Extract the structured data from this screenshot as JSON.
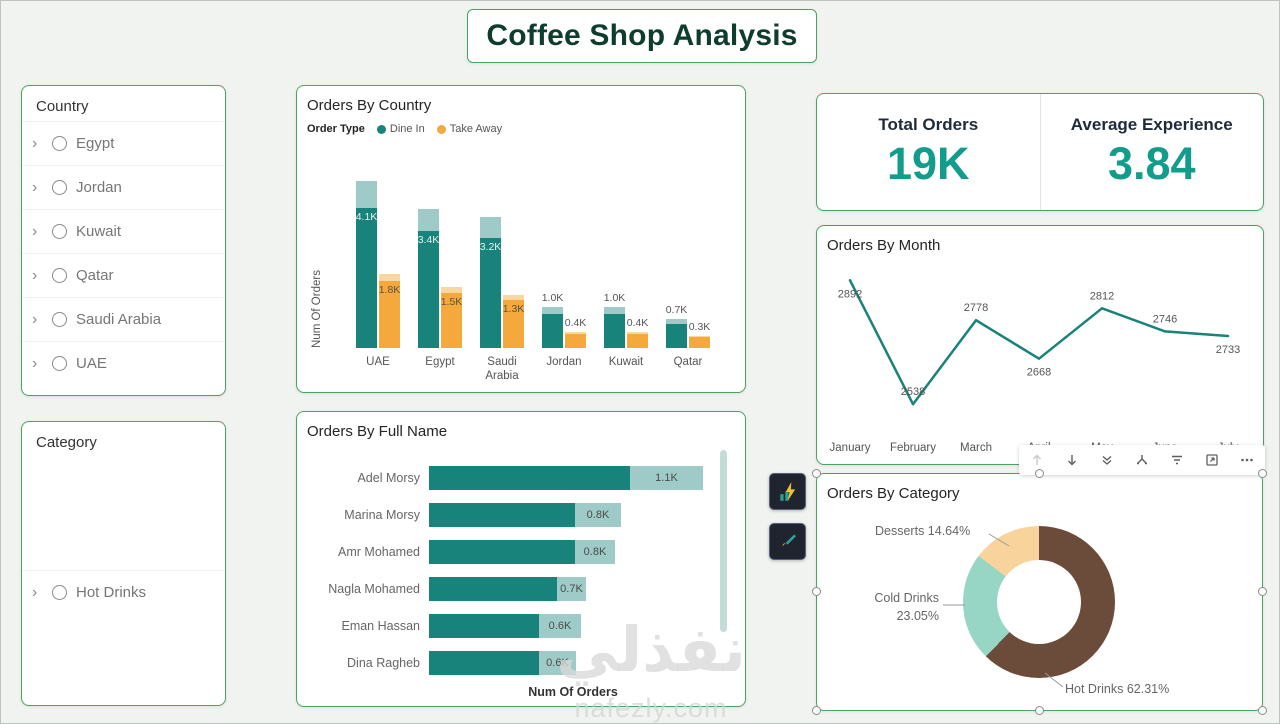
{
  "page": {
    "title": "Coffee Shop Analysis"
  },
  "colors": {
    "accent_teal": "#129c8b",
    "teal_dark": "#17837a",
    "teal_light": "#9ecbc7",
    "orange": "#f5a83c",
    "orange_light": "#f8d8a0",
    "card_border": "#4aa35e",
    "title_color": "#0e3c2e"
  },
  "slicers": {
    "country": {
      "title": "Country",
      "items": [
        "Egypt",
        "Jordan",
        "Kuwait",
        "Qatar",
        "Saudi Arabia",
        "UAE"
      ]
    },
    "category": {
      "title": "Category",
      "items": [
        "Hot Drinks"
      ]
    }
  },
  "kpis": {
    "total_orders": {
      "label": "Total Orders",
      "value": "19K"
    },
    "average_experience": {
      "label": "Average Experience",
      "value": "3.84"
    }
  },
  "visual_toolbar": {
    "icons": [
      "drill-up",
      "drill-down",
      "go-to-next-level",
      "expand-all-down",
      "filters",
      "focus-mode",
      "more-options"
    ]
  },
  "nav_buttons": [
    "bookmark-chart-button",
    "bookmark-brush-button"
  ],
  "watermark": {
    "line1": "نفذلي",
    "line2": "nafezly.com"
  },
  "chart_data": [
    {
      "id": "orders_by_country",
      "type": "bar",
      "title": "Orders By Country",
      "legend_title": "Order Type",
      "legend_position": "top-left",
      "categories": [
        "UAE",
        "Egypt",
        "Saudi Arabia",
        "Jordan",
        "Kuwait",
        "Qatar"
      ],
      "series": [
        {
          "name": "Dine In",
          "color": "#17837a",
          "color_light": "#9ecbc7",
          "values": [
            4100,
            3400,
            3200,
            1000,
            1000,
            700
          ],
          "labels": [
            "4.1K",
            "3.4K",
            "3.2K",
            "1.0K",
            "1.0K",
            "0.7K"
          ],
          "cap_fraction": 0.16,
          "inside_label_color": "#e9f0ef"
        },
        {
          "name": "Take Away",
          "color": "#f5a83c",
          "color_light": "#f8d8a0",
          "values": [
            1800,
            1500,
            1300,
            400,
            400,
            300
          ],
          "labels": [
            "1.8K",
            "1.5K",
            "1.3K",
            "0.4K",
            "0.4K",
            "0.3K"
          ],
          "cap_fraction": 0.1,
          "inside_label_color": "#5a5248"
        }
      ],
      "ylabel": "Num Of Orders",
      "ymax": 4800,
      "grid": false
    },
    {
      "id": "orders_by_full_name",
      "type": "bar-horizontal",
      "title": "Orders By Full Name",
      "categories": [
        "Adel Morsy",
        "Marina Morsy",
        "Amr Mohamed",
        "Nagla Mohamed",
        "Eman Hassan",
        "Dina Ragheb"
      ],
      "values": [
        1100,
        800,
        800,
        700,
        600,
        600
      ],
      "totals": [
        1500,
        1050,
        1020,
        860,
        830,
        800
      ],
      "labels": [
        "1.1K",
        "0.8K",
        "0.8K",
        "0.7K",
        "0.6K",
        "0.6K"
      ],
      "xlabel": "Num Of Orders",
      "grid": false
    },
    {
      "id": "orders_by_month",
      "type": "line",
      "title": "Orders By Month",
      "categories": [
        "January",
        "February",
        "March",
        "April",
        "May",
        "June",
        "July"
      ],
      "values": [
        2892,
        2538,
        2778,
        2668,
        2812,
        2746,
        2733
      ],
      "label_positions": [
        "below",
        "above",
        "above",
        "below",
        "above",
        "above",
        "below"
      ],
      "color": "#17837a",
      "ymin": 2450,
      "ymax": 2950,
      "grid": false
    },
    {
      "id": "orders_by_category",
      "type": "donut",
      "title": "Orders By Category",
      "slices": [
        {
          "name": "Hot Drinks",
          "pct": 62.31,
          "label": "Hot Drinks 62.31%",
          "color": "#6b4b3a"
        },
        {
          "name": "Cold Drinks",
          "pct": 23.05,
          "label": "Cold Drinks 23.05%",
          "color": "#97d5c5"
        },
        {
          "name": "Desserts",
          "pct": 14.64,
          "label": "Desserts 14.64%",
          "color": "#f8d49c"
        }
      ]
    }
  ]
}
